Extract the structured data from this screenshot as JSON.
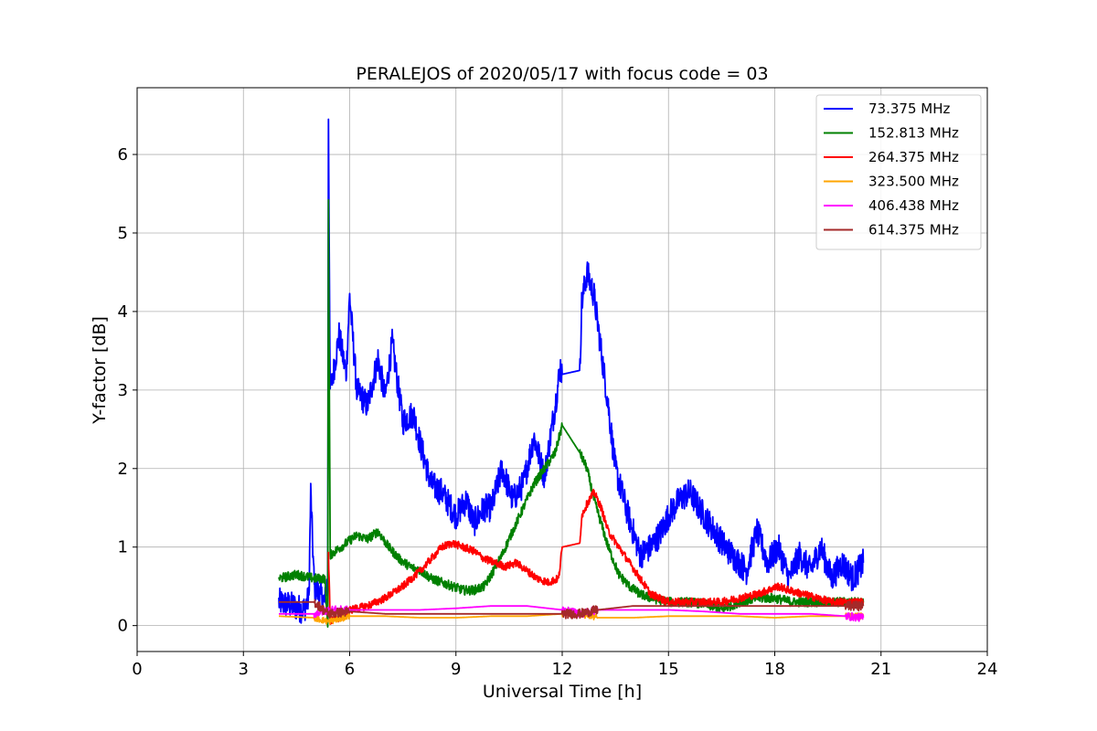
{
  "chart_data": {
    "type": "line",
    "title": "PERALEJOS of 2020/05/17 with focus code = 03",
    "xlabel": "Universal Time [h]",
    "ylabel": "Y-factor [dB]",
    "xlim": [
      0,
      24
    ],
    "ylim": [
      -0.33,
      6.85
    ],
    "xticks": [
      0,
      3,
      6,
      9,
      12,
      15,
      18,
      21,
      24
    ],
    "yticks": [
      0,
      1,
      2,
      3,
      4,
      5,
      6
    ],
    "grid": true,
    "legend_position": "top-right",
    "series": [
      {
        "name": " 73.375 MHz",
        "color": "#0000ff",
        "x": [
          4.0,
          4.4,
          4.7,
          4.85,
          4.9,
          5.0,
          5.3,
          5.38,
          5.4,
          5.45,
          5.5,
          5.7,
          5.9,
          6.0,
          6.2,
          6.5,
          6.8,
          7.0,
          7.2,
          7.5,
          7.8,
          8.0,
          8.3,
          8.6,
          9.0,
          9.3,
          9.5,
          9.8,
          10.0,
          10.3,
          10.6,
          10.9,
          11.2,
          11.5,
          11.8,
          11.95,
          12.0,
          12.5,
          12.55,
          12.7,
          12.9,
          13.1,
          13.3,
          13.5,
          13.8,
          14.0,
          14.2,
          14.5,
          14.8,
          15.0,
          15.3,
          15.6,
          16.0,
          16.3,
          16.6,
          16.9,
          17.2,
          17.5,
          17.8,
          18.1,
          18.4,
          18.7,
          19.0,
          19.3,
          19.6,
          19.9,
          20.2,
          20.5
        ],
        "y": [
          0.3,
          0.25,
          0.2,
          0.35,
          1.7,
          0.5,
          0.3,
          0.6,
          6.5,
          3.0,
          3.1,
          3.7,
          3.2,
          4.2,
          3.0,
          2.8,
          3.4,
          2.9,
          3.6,
          2.6,
          2.7,
          2.3,
          1.8,
          1.7,
          1.4,
          1.6,
          1.3,
          1.5,
          1.5,
          2.0,
          1.6,
          1.8,
          2.4,
          1.9,
          2.8,
          3.3,
          3.2,
          3.25,
          4.1,
          4.5,
          4.2,
          3.5,
          2.8,
          2.0,
          1.5,
          1.2,
          0.9,
          1.0,
          1.2,
          1.4,
          1.6,
          1.7,
          1.4,
          1.2,
          1.0,
          0.85,
          0.7,
          1.2,
          0.8,
          1.0,
          0.6,
          0.9,
          0.7,
          1.0,
          0.6,
          0.8,
          0.6,
          0.8
        ]
      },
      {
        "name": "152.813 MHz",
        "color": "#008000",
        "x": [
          4.0,
          4.5,
          5.0,
          5.3,
          5.38,
          5.4,
          5.45,
          5.6,
          5.9,
          6.2,
          6.5,
          6.8,
          7.1,
          7.4,
          7.7,
          8.0,
          8.3,
          8.6,
          8.9,
          9.2,
          9.5,
          9.8,
          10.0,
          10.3,
          10.6,
          10.9,
          11.2,
          11.5,
          11.8,
          12.0,
          12.5,
          12.7,
          12.9,
          13.1,
          13.3,
          13.6,
          13.9,
          14.2,
          14.5,
          15.0,
          15.5,
          16.0,
          16.5,
          17.0,
          17.5,
          18.0,
          18.5,
          19.0,
          19.5,
          20.0,
          20.5
        ],
        "y": [
          0.6,
          0.65,
          0.6,
          0.6,
          0.0,
          5.45,
          0.9,
          0.95,
          1.05,
          1.15,
          1.1,
          1.2,
          1.0,
          0.85,
          0.75,
          0.7,
          0.6,
          0.55,
          0.5,
          0.45,
          0.45,
          0.5,
          0.65,
          0.9,
          1.2,
          1.5,
          1.8,
          2.0,
          2.2,
          2.55,
          2.2,
          2.0,
          1.6,
          1.3,
          1.0,
          0.65,
          0.5,
          0.4,
          0.35,
          0.3,
          0.3,
          0.28,
          0.2,
          0.3,
          0.35,
          0.35,
          0.3,
          0.3,
          0.3,
          0.3,
          0.3
        ]
      },
      {
        "name": "264.375 MHz",
        "color": "#ff0000",
        "x": [
          5.4,
          5.45,
          5.7,
          6.0,
          6.5,
          7.0,
          7.5,
          8.0,
          8.3,
          8.6,
          8.9,
          9.2,
          9.5,
          9.8,
          10.1,
          10.4,
          10.7,
          11.0,
          11.3,
          11.6,
          11.9,
          12.0,
          12.5,
          12.55,
          12.7,
          12.9,
          13.1,
          13.3,
          13.6,
          13.9,
          14.2,
          14.5,
          15.0,
          15.5,
          16.0,
          16.5,
          17.0,
          17.5,
          17.8,
          18.1,
          18.4,
          18.8,
          19.2,
          19.6,
          20.0,
          20.5
        ],
        "y": [
          0.95,
          0.05,
          0.1,
          0.2,
          0.25,
          0.35,
          0.5,
          0.7,
          0.85,
          1.0,
          1.05,
          1.0,
          0.95,
          0.85,
          0.8,
          0.75,
          0.8,
          0.7,
          0.6,
          0.55,
          0.6,
          1.0,
          1.05,
          1.4,
          1.55,
          1.7,
          1.5,
          1.2,
          1.0,
          0.8,
          0.6,
          0.4,
          0.3,
          0.3,
          0.3,
          0.3,
          0.35,
          0.4,
          0.45,
          0.5,
          0.45,
          0.4,
          0.35,
          0.3,
          0.3,
          0.3
        ]
      },
      {
        "name": "323.500 MHz",
        "color": "#ffa500",
        "x": [
          4.0,
          5.0,
          5.4,
          6.0,
          7.0,
          8.0,
          9.0,
          10.0,
          11.0,
          12.0,
          12.5,
          13.0,
          14.0,
          15.0,
          16.0,
          17.0,
          18.0,
          19.0,
          20.0,
          20.5
        ],
        "y": [
          0.12,
          0.1,
          0.05,
          0.12,
          0.12,
          0.1,
          0.1,
          0.12,
          0.12,
          0.15,
          0.15,
          0.1,
          0.1,
          0.12,
          0.12,
          0.12,
          0.1,
          0.12,
          0.12,
          0.12
        ]
      },
      {
        "name": "406.438 MHz",
        "color": "#ff00ff",
        "x": [
          4.0,
          5.0,
          5.4,
          6.0,
          7.0,
          8.0,
          9.0,
          10.0,
          11.0,
          12.0,
          12.5,
          13.0,
          14.0,
          15.0,
          16.0,
          17.0,
          18.0,
          19.0,
          20.0,
          20.5
        ],
        "y": [
          0.15,
          0.15,
          0.2,
          0.2,
          0.2,
          0.2,
          0.22,
          0.25,
          0.25,
          0.2,
          0.15,
          0.2,
          0.2,
          0.2,
          0.18,
          0.15,
          0.15,
          0.15,
          0.12,
          0.1
        ]
      },
      {
        "name": "614.375 MHz",
        "color": "#a52a2a",
        "x": [
          4.0,
          5.0,
          5.4,
          6.0,
          7.0,
          8.0,
          9.0,
          10.0,
          11.0,
          12.0,
          12.5,
          13.0,
          14.0,
          15.0,
          16.0,
          17.0,
          18.0,
          19.0,
          20.0,
          20.5
        ],
        "y": [
          0.3,
          0.3,
          0.15,
          0.18,
          0.15,
          0.15,
          0.15,
          0.15,
          0.15,
          0.15,
          0.15,
          0.2,
          0.25,
          0.25,
          0.25,
          0.25,
          0.25,
          0.25,
          0.25,
          0.25
        ]
      }
    ]
  }
}
